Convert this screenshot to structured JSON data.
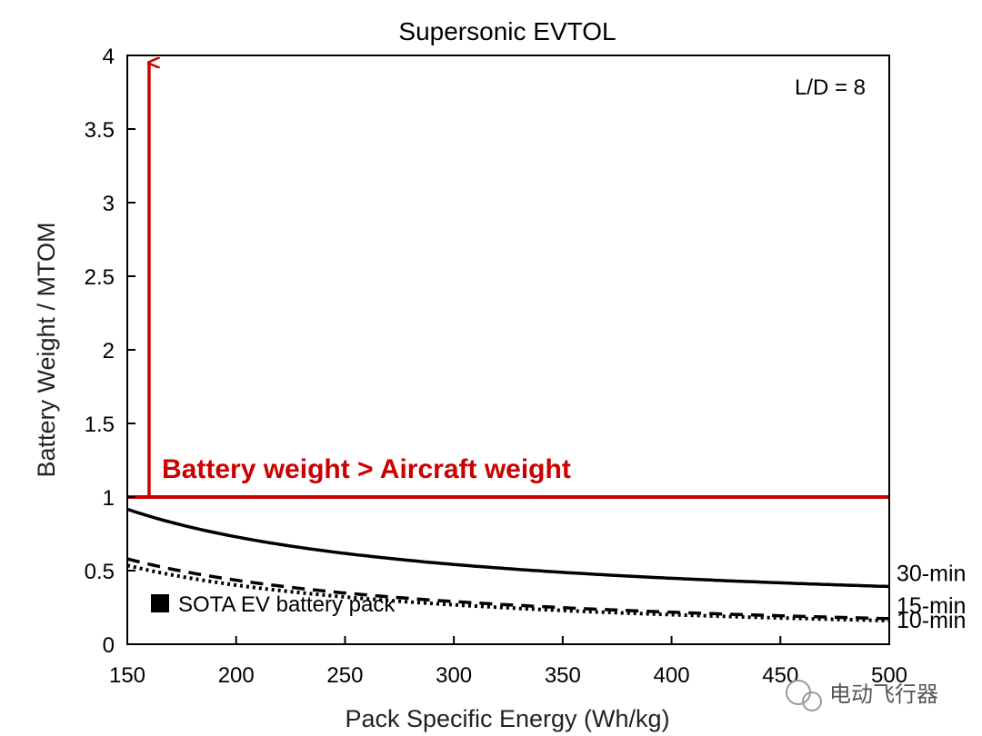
{
  "chart_data": {
    "type": "line",
    "title": "Supersonic EVTOL",
    "xlabel": "Pack Specific Energy (Wh/kg)",
    "ylabel": "Battery Weight / MTOM",
    "xlim": [
      150,
      500
    ],
    "ylim": [
      0,
      4
    ],
    "x_ticks": [
      150,
      200,
      250,
      300,
      350,
      400,
      450,
      500
    ],
    "x_tick_labels": [
      "150",
      "200",
      "250",
      "300",
      "350",
      "400",
      "450",
      "500"
    ],
    "y_ticks": [
      0,
      0.5,
      1,
      1.5,
      2,
      2.5,
      3,
      3.5,
      4
    ],
    "y_tick_labels": [
      "0",
      "0.5",
      "1",
      "1.5",
      "2",
      "2.5",
      "3",
      "3.5",
      "4"
    ],
    "grid": false,
    "series": [
      {
        "name": "30-min",
        "style": "solid",
        "color": "#000000",
        "a": 112.5,
        "b": 0.167
      },
      {
        "name": "15-min",
        "style": "dotted",
        "color": "#000000",
        "a": 80.3,
        "b": 0.0
      },
      {
        "name": "10-min",
        "style": "dashed",
        "color": "#000000",
        "a": 87.0,
        "b": 0.0
      }
    ],
    "threshold": {
      "y": 1,
      "label": "Battery weight > Aircraft weight",
      "color": "#cc0000"
    },
    "sota_marker": {
      "x": 160,
      "label": "SOTA EV battery pack",
      "color": "#cc0000"
    },
    "annotation": "L/D = 8"
  },
  "watermark": {
    "text": "电动飞行器"
  }
}
